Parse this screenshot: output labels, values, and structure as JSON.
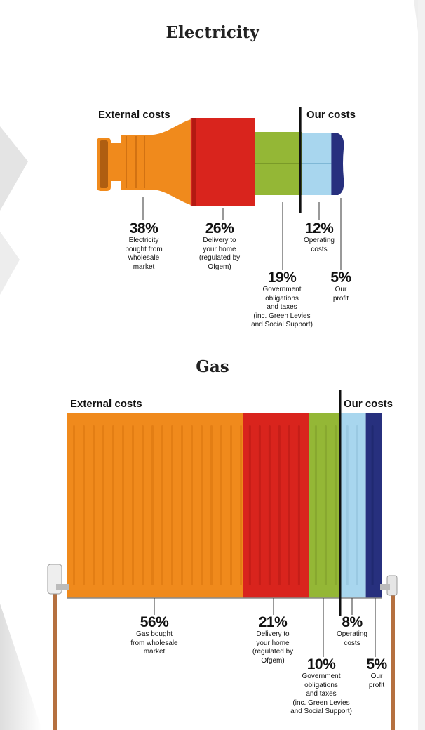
{
  "chart_data": [
    {
      "type": "bar",
      "title": "Electricity",
      "group_labels": {
        "external": "External costs",
        "ours": "Our costs"
      },
      "categories": [
        "Electricity bought from wholesale market",
        "Delivery to your home (regulated by Ofgem)",
        "Government obligations and taxes (inc. Green Levies and Social Support)",
        "Operating costs",
        "Our profit"
      ],
      "values": [
        38,
        26,
        19,
        12,
        5
      ],
      "unit": "%",
      "segments": [
        {
          "pct": "38%",
          "desc": "Electricity\nbought from\nwholesale\nmarket",
          "color": "#f08a1c",
          "group": "external"
        },
        {
          "pct": "26%",
          "desc": "Delivery to\nyour home\n(regulated by\nOfgem)",
          "color": "#d9241d",
          "group": "external"
        },
        {
          "pct": "19%",
          "desc": "Government\nobligations\nand taxes\n(inc. Green Levies\nand Social Support)",
          "color": "#94b736",
          "group": "external"
        },
        {
          "pct": "12%",
          "desc": "Operating\ncosts",
          "color": "#a8d6ee",
          "group": "ours"
        },
        {
          "pct": "5%",
          "desc": "Our\nprofit",
          "color": "#27307e",
          "group": "ours"
        }
      ]
    },
    {
      "type": "bar",
      "title": "Gas",
      "group_labels": {
        "external": "External costs",
        "ours": "Our costs"
      },
      "categories": [
        "Gas bought from wholesale market",
        "Delivery to your home (regulated by Ofgem)",
        "Government obligations and taxes (inc. Green Levies and Social Support)",
        "Operating costs",
        "Our profit"
      ],
      "values": [
        56,
        21,
        10,
        8,
        5
      ],
      "unit": "%",
      "segments": [
        {
          "pct": "56%",
          "desc": "Gas bought\nfrom wholesale\nmarket",
          "color": "#f08a1c",
          "group": "external"
        },
        {
          "pct": "21%",
          "desc": "Delivery to\nyour home\n(regulated by\nOfgem)",
          "color": "#d9241d",
          "group": "external"
        },
        {
          "pct": "10%",
          "desc": "Government\nobligations\nand taxes\n(inc. Green Levies\nand Social Support)",
          "color": "#94b736",
          "group": "external"
        },
        {
          "pct": "8%",
          "desc": "Operating\ncosts",
          "color": "#a8d6ee",
          "group": "ours"
        },
        {
          "pct": "5%",
          "desc": "Our\nprofit",
          "color": "#27307e",
          "group": "ours"
        }
      ]
    }
  ]
}
